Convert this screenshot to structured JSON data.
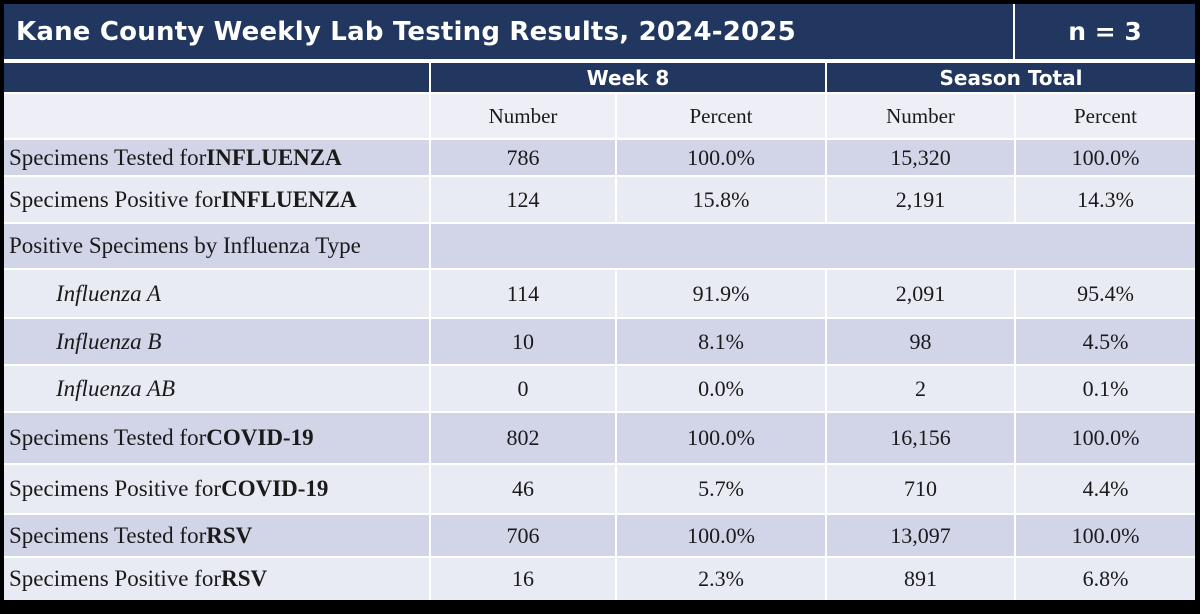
{
  "title": "Kane County Weekly Lab Testing Results, 2024-2025",
  "n_label": "n = 3",
  "column_groups": {
    "week": "Week 8",
    "season": "Season Total"
  },
  "subheaders": [
    "Number",
    "Percent",
    "Number",
    "Percent"
  ],
  "rows": [
    {
      "label_prefix": "Specimens Tested for ",
      "label_bold": "INFLUENZA",
      "values": [
        "786",
        "100.0%",
        "15,320",
        "100.0%"
      ]
    },
    {
      "label_prefix": "Specimens Positive for ",
      "label_bold": "INFLUENZA",
      "values": [
        "124",
        "15.8%",
        "2,191",
        "14.3%"
      ]
    },
    {
      "label_prefix": "Positive Specimens by Influenza Type",
      "label_bold": "",
      "values": []
    },
    {
      "label_prefix": "Influenza A",
      "label_bold": "",
      "values": [
        "114",
        "91.9%",
        "2,091",
        "95.4%"
      ]
    },
    {
      "label_prefix": "Influenza B",
      "label_bold": "",
      "values": [
        "10",
        "8.1%",
        "98",
        "4.5%"
      ]
    },
    {
      "label_prefix": "Influenza AB",
      "label_bold": "",
      "values": [
        "0",
        "0.0%",
        "2",
        "0.1%"
      ]
    },
    {
      "label_prefix": "Specimens Tested for ",
      "label_bold": "COVID-19",
      "values": [
        "802",
        "100.0%",
        "16,156",
        "100.0%"
      ]
    },
    {
      "label_prefix": "Specimens Positive for ",
      "label_bold": "COVID-19",
      "values": [
        "46",
        "5.7%",
        "710",
        "4.4%"
      ]
    },
    {
      "label_prefix": "Specimens Tested for ",
      "label_bold": "RSV",
      "values": [
        "706",
        "100.0%",
        "13,097",
        "100.0%"
      ]
    },
    {
      "label_prefix": "Specimens Positive for ",
      "label_bold": "RSV",
      "values": [
        "16",
        "2.3%",
        "891",
        "6.8%"
      ]
    }
  ],
  "colors": {
    "header_navy": "#21375F",
    "row_lavender": "#D2D5E8",
    "row_light": "#E9EBF4",
    "subheader_light": "#EDEEF6",
    "gridline_white": "#FFFFFF",
    "outer_border_black": "#000000",
    "header_text": "#FFFFFF",
    "body_text": "#1A1A1A"
  }
}
